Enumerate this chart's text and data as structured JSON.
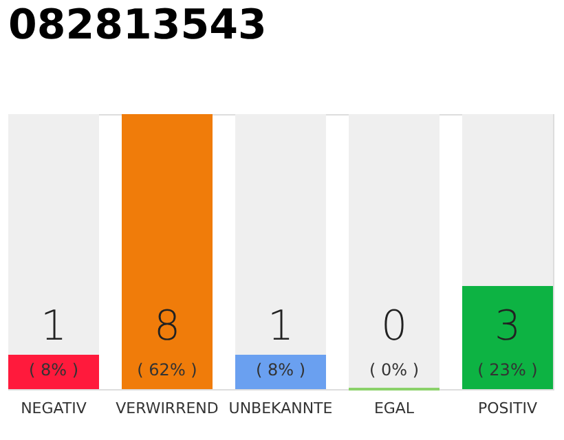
{
  "chart_data": {
    "type": "bar",
    "title": "082813543",
    "categories": [
      "NEGATIV",
      "VERWIRREND",
      "UNBEKANNTE",
      "EGAL",
      "POSITIV"
    ],
    "values": [
      1,
      8,
      1,
      0,
      3
    ],
    "colors": [
      "#ff1a3c",
      "#f07c0a",
      "#6aa0f0",
      "#8bd16a",
      "#0db343"
    ],
    "data_labels": true,
    "annotations": [
      "( 8% )",
      "( 62% )",
      "( 8% )",
      "( 0% )",
      "( 23% )"
    ]
  }
}
